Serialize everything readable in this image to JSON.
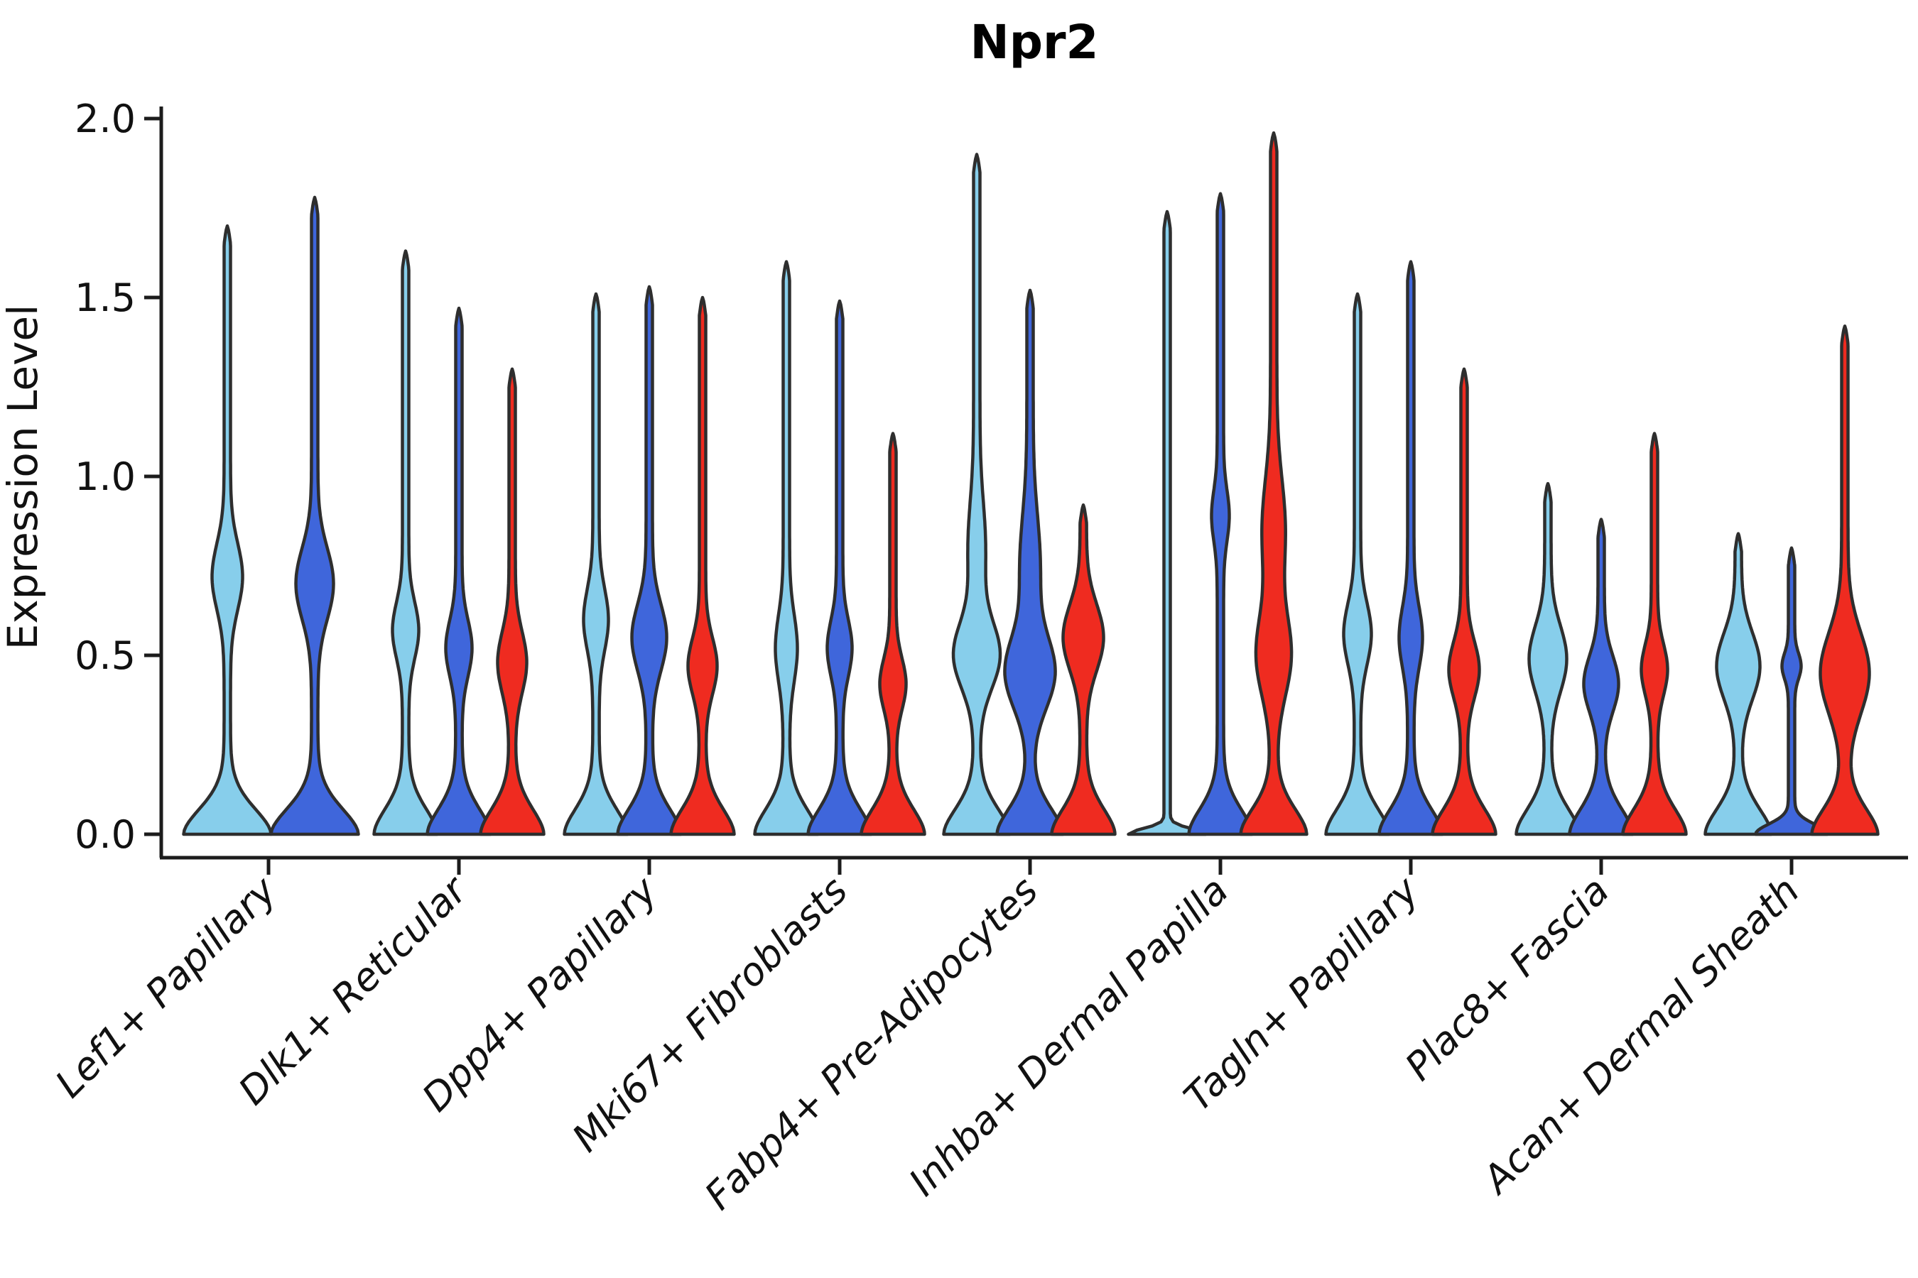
{
  "title": "Npr2",
  "y_axis": {
    "label": "Expression Level",
    "tick_labels": [
      "2.0",
      "1.5",
      "1.0",
      "0.5",
      "0.0"
    ],
    "tick_values": [
      2.0,
      1.5,
      1.0,
      0.5,
      0.0
    ],
    "range": [
      0.0,
      2.0
    ]
  },
  "colors": {
    "light_blue": "#87CEEB",
    "royal_blue": "#3F66DB",
    "red": "#EF2B20",
    "outline": "#2e2e2e",
    "axis": "#1c1c1c",
    "background": "#ffffff"
  },
  "chart_data": {
    "type": "violin",
    "title": "Npr2",
    "xlabel": "",
    "ylabel": "Expression Level",
    "ylim": [
      0,
      2.0
    ],
    "yticks": [
      0.0,
      0.5,
      1.0,
      1.5,
      2.0
    ],
    "grid": false,
    "legend": "none",
    "series": [
      "light_blue",
      "royal_blue",
      "red"
    ],
    "categories": [
      "Lef1+ Papillary",
      "Dlk1+ Reticular",
      "Dpp4+ Papillary",
      "Mki67+ Fibroblasts",
      "Fabp4+ Pre-Adipocytes",
      "Inhba+ Dermal Papilla",
      "Tagln+ Papillary",
      "Plac8+ Fascia",
      "Acan+ Dermal Sheath"
    ],
    "groups": [
      {
        "category": "Lef1+ Papillary",
        "violins": [
          {
            "color_key": "light_blue",
            "peak": 1.7,
            "base_width": 57,
            "bulges": [
              {
                "center": 0.72,
                "width": 17,
                "spread": 0.13
              }
            ]
          },
          {
            "color_key": "royal_blue",
            "peak": 1.78,
            "base_width": 57,
            "bulges": [
              {
                "center": 0.7,
                "width": 22,
                "spread": 0.14
              }
            ]
          }
        ]
      },
      {
        "category": "Dlk1+ Reticular",
        "violins": [
          {
            "color_key": "light_blue",
            "peak": 1.63,
            "base_width": 40,
            "bulges": [
              {
                "center": 0.57,
                "width": 14,
                "spread": 0.11
              }
            ]
          },
          {
            "color_key": "royal_blue",
            "peak": 1.47,
            "base_width": 40,
            "bulges": [
              {
                "center": 0.52,
                "width": 14,
                "spread": 0.11
              }
            ]
          },
          {
            "color_key": "red",
            "peak": 1.3,
            "base_width": 40,
            "bulges": [
              {
                "center": 0.48,
                "width": 16,
                "spread": 0.12
              }
            ]
          }
        ]
      },
      {
        "category": "Dpp4+ Papillary",
        "violins": [
          {
            "color_key": "light_blue",
            "peak": 1.51,
            "base_width": 40,
            "bulges": [
              {
                "center": 0.6,
                "width": 13,
                "spread": 0.12
              }
            ]
          },
          {
            "color_key": "royal_blue",
            "peak": 1.53,
            "base_width": 40,
            "bulges": [
              {
                "center": 0.55,
                "width": 20,
                "spread": 0.13
              }
            ]
          },
          {
            "color_key": "red",
            "peak": 1.5,
            "base_width": 40,
            "bulges": [
              {
                "center": 0.47,
                "width": 16,
                "spread": 0.11
              }
            ]
          }
        ]
      },
      {
        "category": "Mki67+ Fibroblasts",
        "violins": [
          {
            "color_key": "light_blue",
            "peak": 1.6,
            "base_width": 40,
            "bulges": [
              {
                "center": 0.52,
                "width": 11,
                "spread": 0.13
              }
            ]
          },
          {
            "color_key": "royal_blue",
            "peak": 1.49,
            "base_width": 40,
            "bulges": [
              {
                "center": 0.52,
                "width": 13,
                "spread": 0.11
              }
            ]
          },
          {
            "color_key": "red",
            "peak": 1.12,
            "base_width": 40,
            "bulges": [
              {
                "center": 0.42,
                "width": 14,
                "spread": 0.1
              }
            ]
          }
        ]
      },
      {
        "category": "Fabp4+ Pre-Adipocytes",
        "violins": [
          {
            "color_key": "light_blue",
            "peak": 1.9,
            "base_width": 42,
            "bulges": [
              {
                "center": 0.5,
                "width": 28,
                "spread": 0.13
              },
              {
                "center": 0.8,
                "width": 8,
                "spread": 0.18
              }
            ]
          },
          {
            "color_key": "royal_blue",
            "peak": 1.52,
            "base_width": 42,
            "bulges": [
              {
                "center": 0.45,
                "width": 30,
                "spread": 0.14
              },
              {
                "center": 0.75,
                "width": 10,
                "spread": 0.2
              }
            ]
          },
          {
            "color_key": "red",
            "peak": 0.92,
            "base_width": 40,
            "bulges": [
              {
                "center": 0.55,
                "width": 24,
                "spread": 0.13
              }
            ]
          }
        ]
      },
      {
        "category": "Inhba+ Dermal Papilla",
        "violins": [
          {
            "color_key": "light_blue",
            "peak": 1.74,
            "base_width": 50,
            "flat_base": true,
            "base_spread": 0.022,
            "bulges": []
          },
          {
            "color_key": "royal_blue",
            "peak": 1.79,
            "base_width": 40,
            "bulges": [
              {
                "center": 0.89,
                "width": 8,
                "spread": 0.1
              }
            ]
          },
          {
            "color_key": "red",
            "peak": 1.96,
            "base_width": 42,
            "bulges": [
              {
                "center": 0.5,
                "width": 20,
                "spread": 0.16
              },
              {
                "center": 0.85,
                "width": 12,
                "spread": 0.2
              }
            ]
          }
        ]
      },
      {
        "category": "Tagln+ Papillary",
        "violins": [
          {
            "color_key": "light_blue",
            "peak": 1.51,
            "base_width": 40,
            "bulges": [
              {
                "center": 0.56,
                "width": 15,
                "spread": 0.12
              }
            ]
          },
          {
            "color_key": "royal_blue",
            "peak": 1.6,
            "base_width": 40,
            "bulges": [
              {
                "center": 0.55,
                "width": 12,
                "spread": 0.12
              }
            ]
          },
          {
            "color_key": "red",
            "peak": 1.3,
            "base_width": 40,
            "bulges": [
              {
                "center": 0.46,
                "width": 17,
                "spread": 0.11
              }
            ]
          }
        ]
      },
      {
        "category": "Plac8+ Fascia",
        "violins": [
          {
            "color_key": "light_blue",
            "peak": 0.98,
            "base_width": 40,
            "bulges": [
              {
                "center": 0.49,
                "width": 22,
                "spread": 0.13
              }
            ]
          },
          {
            "color_key": "royal_blue",
            "peak": 0.88,
            "base_width": 40,
            "bulges": [
              {
                "center": 0.42,
                "width": 20,
                "spread": 0.11
              }
            ]
          },
          {
            "color_key": "red",
            "peak": 1.12,
            "base_width": 40,
            "bulges": [
              {
                "center": 0.46,
                "width": 14,
                "spread": 0.1
              }
            ]
          }
        ]
      },
      {
        "category": "Acan+ Dermal Sheath",
        "violins": [
          {
            "color_key": "light_blue",
            "peak": 0.84,
            "base_width": 42,
            "bulges": [
              {
                "center": 0.47,
                "width": 26,
                "spread": 0.13
              }
            ]
          },
          {
            "color_key": "royal_blue",
            "peak": 0.8,
            "base_width": 46,
            "flat_base": true,
            "base_spread": 0.04,
            "bulges": [
              {
                "center": 0.47,
                "width": 9,
                "spread": 0.05
              }
            ]
          },
          {
            "color_key": "red",
            "peak": 1.42,
            "base_width": 42,
            "bulges": [
              {
                "center": 0.45,
                "width": 30,
                "spread": 0.16
              }
            ]
          }
        ]
      }
    ]
  }
}
